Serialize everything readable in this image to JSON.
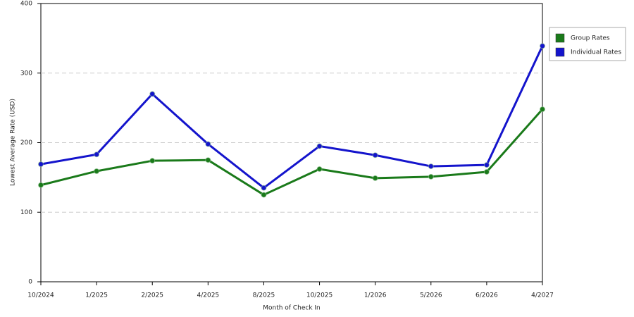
{
  "chart_data": {
    "type": "line",
    "x_label": "Month of Check In",
    "y_label": "Lowest Average Rate (USD)",
    "categories": [
      "10/2024",
      "1/2025",
      "2/2025",
      "4/2025",
      "8/2025",
      "10/2025",
      "1/2026",
      "5/2026",
      "6/2026",
      "4/2027"
    ],
    "series": [
      {
        "name": "Group Rates",
        "color": "#1a7a1a",
        "values": [
          139,
          159,
          174,
          175,
          125,
          162,
          149,
          151,
          158,
          248
        ]
      },
      {
        "name": "Individual Rates",
        "color": "#1414cc",
        "values": [
          169,
          183,
          270,
          198,
          135,
          195,
          182,
          166,
          168,
          339
        ]
      }
    ],
    "ylim": [
      0,
      400
    ],
    "yticks": [
      0,
      100,
      200,
      300,
      400
    ],
    "grid": true,
    "legend": "right"
  }
}
